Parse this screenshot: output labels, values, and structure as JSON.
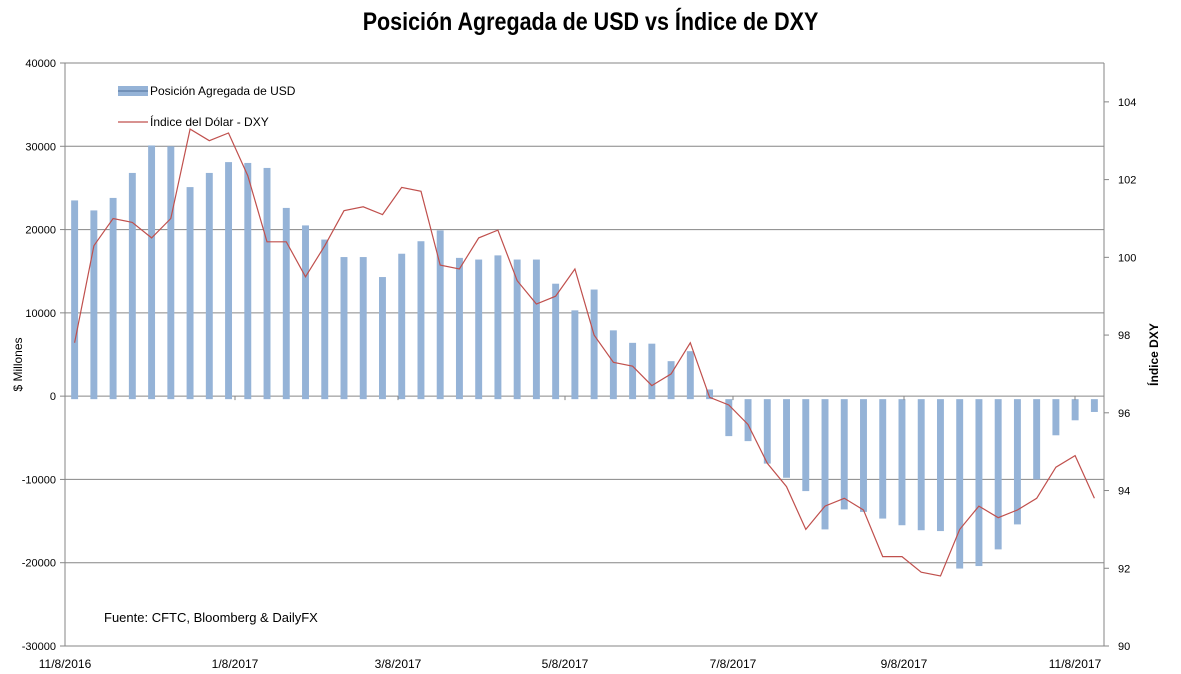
{
  "chart_data": {
    "type": "bar",
    "title": "Posición Agregada de USD vs Índice de DXY",
    "ylabel": "$ Millones",
    "y2label": "Índice DXY",
    "xlim": [
      "2016-11-08",
      "2017-11-08"
    ],
    "ylim": [
      -30000,
      40000
    ],
    "y2lim": [
      90,
      105
    ],
    "yticks": [
      "-30000",
      "-20000",
      "-10000",
      "0",
      "10000",
      "20000",
      "30000",
      "40000"
    ],
    "y2ticks": [
      "90",
      "92",
      "94",
      "96",
      "98",
      "100",
      "102",
      "104"
    ],
    "xticks": [
      "11/8/2016",
      "1/8/2017",
      "3/8/2017",
      "5/8/2017",
      "7/8/2017",
      "9/8/2017",
      "11/8/2017"
    ],
    "grid": true,
    "legend_position": "top-left",
    "annotation": "Fuente: CFTC, Bloomberg & DailyFX",
    "series": [
      {
        "name": "Posición Agregada de USD",
        "type": "bar",
        "axis": "left",
        "color": "#95b3d7",
        "values": [
          23500,
          22300,
          23800,
          26800,
          30100,
          30000,
          25100,
          26800,
          28100,
          28000,
          27400,
          22600,
          20500,
          18800,
          16700,
          16700,
          14300,
          17100,
          18600,
          19900,
          16600,
          16400,
          16900,
          16400,
          16400,
          13500,
          10300,
          12800,
          7900,
          6400,
          6300,
          4200,
          5400,
          800,
          -4800,
          -5400,
          -8100,
          -9800,
          -11400,
          -16000,
          -13600,
          -13900,
          -14700,
          -15500,
          -16100,
          -16200,
          -20700,
          -20400,
          -18400,
          -15400,
          -10000,
          -4700,
          -2900,
          -1900
        ]
      },
      {
        "name": "Índice del Dólar - DXY",
        "type": "line",
        "axis": "right",
        "color": "#c0504d",
        "values": [
          97.8,
          100.3,
          101.0,
          100.9,
          100.5,
          101.0,
          103.3,
          103.0,
          103.2,
          102.1,
          100.4,
          100.4,
          99.5,
          100.3,
          101.2,
          101.3,
          101.1,
          101.8,
          101.7,
          99.8,
          99.7,
          100.5,
          100.7,
          99.4,
          98.8,
          99.0,
          99.7,
          98.0,
          97.3,
          97.2,
          96.7,
          97.0,
          97.8,
          96.4,
          96.2,
          95.7,
          94.7,
          94.1,
          93.0,
          93.6,
          93.8,
          93.5,
          92.3,
          92.3,
          91.9,
          91.8,
          93.0,
          93.6,
          93.3,
          93.5,
          93.8,
          94.6,
          94.9,
          93.8
        ]
      }
    ]
  }
}
